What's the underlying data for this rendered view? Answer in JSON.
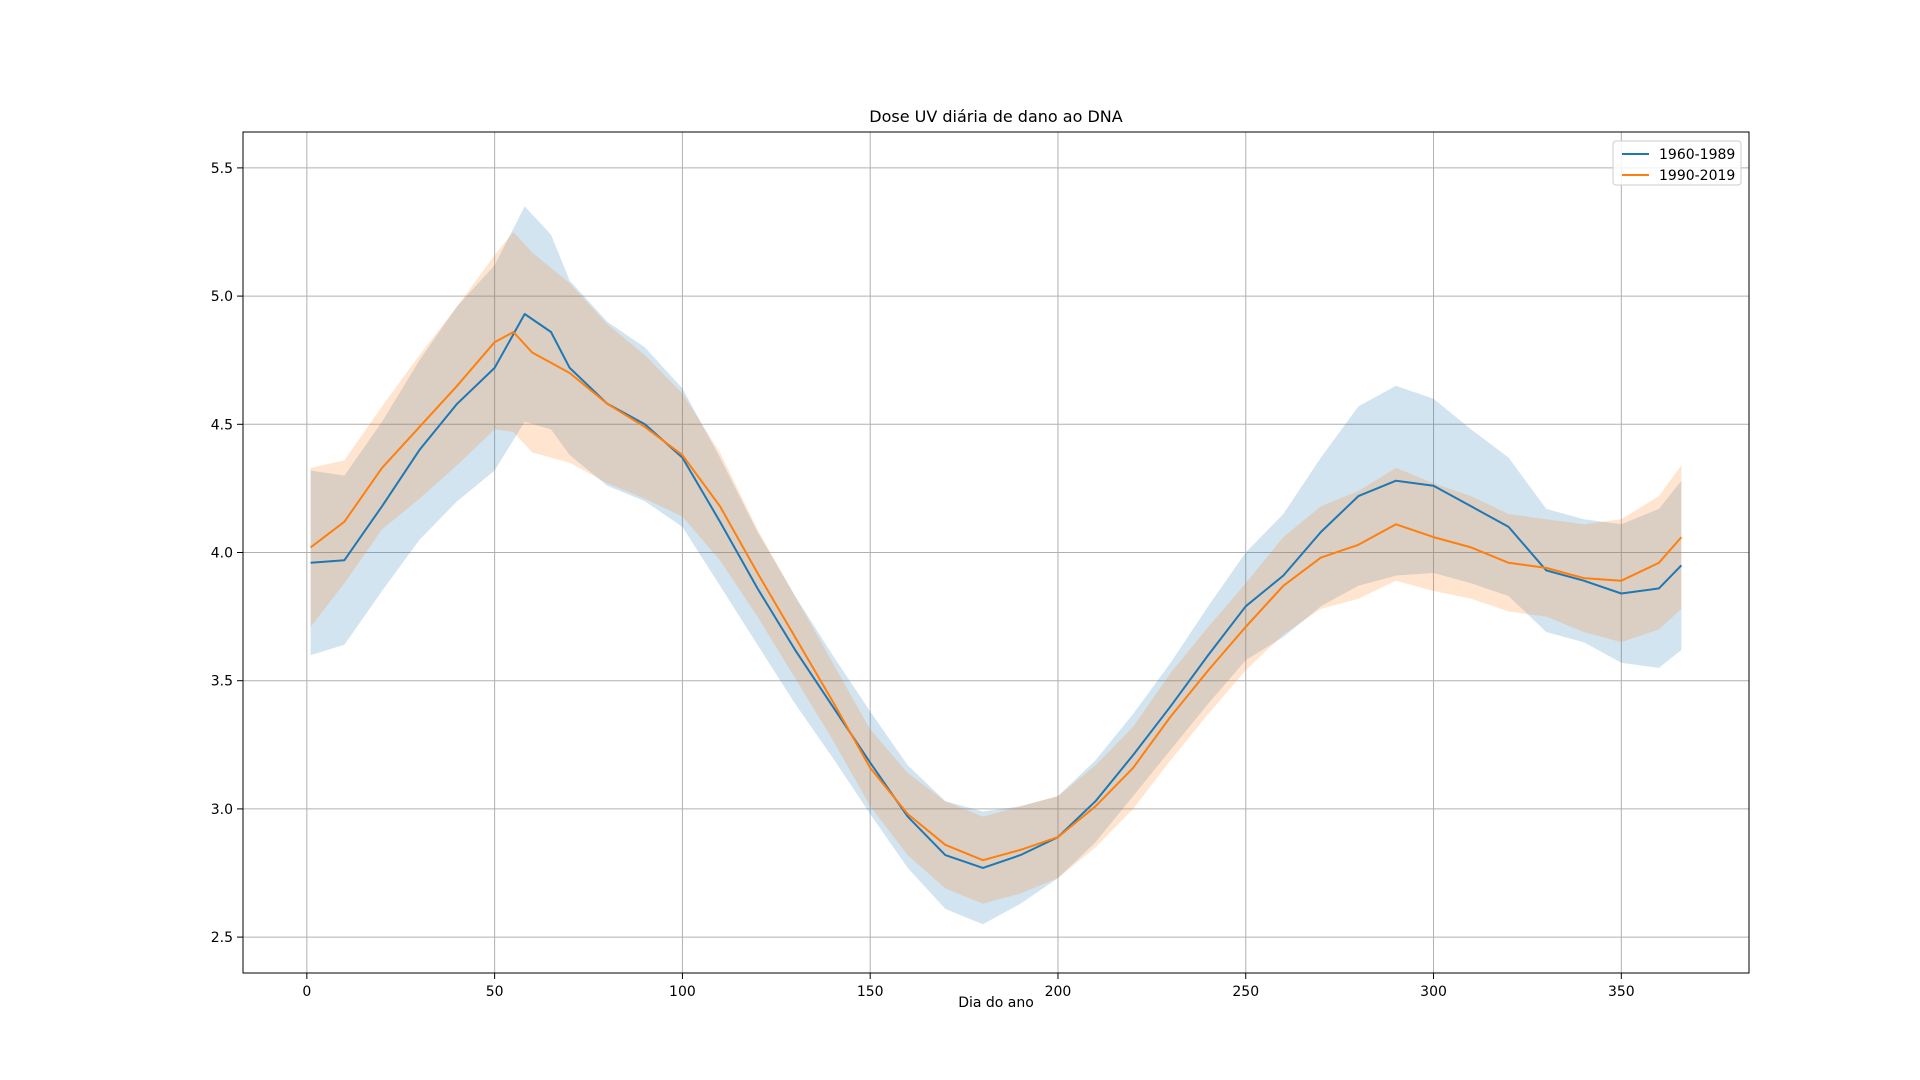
{
  "chart_data": {
    "type": "line",
    "title": "Dose UV diária de dano ao DNA",
    "xlabel": "Dia do ano",
    "ylabel": "",
    "xlim": [
      -17,
      384
    ],
    "ylim": [
      2.36,
      5.64
    ],
    "xticks": [
      0,
      50,
      100,
      150,
      200,
      250,
      300,
      350
    ],
    "yticks": [
      2.5,
      3.0,
      3.5,
      4.0,
      4.5,
      5.0,
      5.5
    ],
    "grid": true,
    "legend_position": "upper right",
    "shaded_band": "mean ± standard deviation per series",
    "series": [
      {
        "name": "1960-1989",
        "color": "#1f77b4",
        "band_color": "#1f77b4",
        "x": [
          1,
          10,
          20,
          30,
          40,
          50,
          58,
          65,
          70,
          80,
          90,
          100,
          110,
          120,
          130,
          140,
          150,
          160,
          170,
          180,
          190,
          200,
          210,
          220,
          230,
          240,
          250,
          260,
          270,
          280,
          290,
          300,
          310,
          320,
          330,
          340,
          350,
          360,
          366
        ],
        "y": [
          3.96,
          3.97,
          4.18,
          4.4,
          4.58,
          4.72,
          4.93,
          4.86,
          4.72,
          4.58,
          4.5,
          4.37,
          4.12,
          3.86,
          3.62,
          3.4,
          3.18,
          2.97,
          2.82,
          2.77,
          2.82,
          2.89,
          3.03,
          3.21,
          3.4,
          3.6,
          3.79,
          3.91,
          4.08,
          4.22,
          4.28,
          4.26,
          4.18,
          4.1,
          3.93,
          3.89,
          3.84,
          3.86,
          3.95
        ],
        "band": [
          0.36,
          0.33,
          0.33,
          0.35,
          0.38,
          0.4,
          0.42,
          0.38,
          0.34,
          0.32,
          0.3,
          0.27,
          0.25,
          0.22,
          0.21,
          0.2,
          0.2,
          0.2,
          0.21,
          0.22,
          0.19,
          0.16,
          0.16,
          0.16,
          0.17,
          0.19,
          0.21,
          0.24,
          0.29,
          0.35,
          0.37,
          0.34,
          0.3,
          0.27,
          0.24,
          0.24,
          0.27,
          0.31,
          0.33
        ]
      },
      {
        "name": "1990-2019",
        "color": "#ff7f0e",
        "band_color": "#ff7f0e",
        "x": [
          1,
          10,
          20,
          30,
          40,
          50,
          55,
          60,
          70,
          80,
          90,
          100,
          110,
          120,
          130,
          140,
          150,
          160,
          170,
          180,
          190,
          200,
          210,
          220,
          230,
          240,
          250,
          260,
          270,
          280,
          290,
          300,
          310,
          320,
          330,
          340,
          350,
          360,
          366
        ],
        "y": [
          4.02,
          4.12,
          4.33,
          4.49,
          4.65,
          4.82,
          4.86,
          4.78,
          4.7,
          4.58,
          4.49,
          4.38,
          4.18,
          3.92,
          3.67,
          3.42,
          3.16,
          2.98,
          2.86,
          2.8,
          2.84,
          2.89,
          3.01,
          3.16,
          3.36,
          3.54,
          3.71,
          3.87,
          3.98,
          4.03,
          4.11,
          4.06,
          4.02,
          3.96,
          3.94,
          3.9,
          3.89,
          3.96,
          4.06
        ],
        "band": [
          0.31,
          0.24,
          0.24,
          0.28,
          0.31,
          0.34,
          0.39,
          0.39,
          0.35,
          0.31,
          0.28,
          0.24,
          0.21,
          0.17,
          0.16,
          0.15,
          0.15,
          0.16,
          0.17,
          0.17,
          0.17,
          0.16,
          0.16,
          0.16,
          0.17,
          0.17,
          0.17,
          0.19,
          0.2,
          0.21,
          0.22,
          0.21,
          0.2,
          0.19,
          0.19,
          0.21,
          0.24,
          0.26,
          0.28
        ]
      }
    ]
  }
}
